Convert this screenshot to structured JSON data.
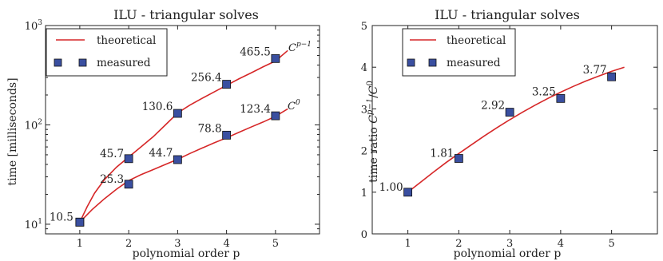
{
  "chart_data": [
    {
      "type": "line",
      "title": "ILU - triangular solves",
      "xlabel": "polynomial order p",
      "ylabel": "time [milliseconds]",
      "yscale": "log",
      "xlim": [
        0.3,
        5.9
      ],
      "ylim": [
        8,
        1000
      ],
      "xticks": [
        "1",
        "2",
        "3",
        "4",
        "5"
      ],
      "yticks": [
        "10¹",
        "10²",
        "10³"
      ],
      "colors": {
        "theoretical": "#d62728",
        "measured": "#3a4fa0"
      },
      "legend": {
        "position": "top-left",
        "entries": [
          "theoretical",
          "measured"
        ]
      },
      "series": [
        {
          "name": "Cᵖ⁻¹",
          "x": [
            1,
            2,
            3,
            4,
            5
          ],
          "values": [
            10.5,
            45.7,
            130.6,
            256.4,
            465.5
          ],
          "labels": [
            "10.5",
            "45.7",
            "130.6",
            "256.4",
            "465.5"
          ]
        },
        {
          "name": "C⁰",
          "x": [
            1,
            2,
            3,
            4,
            5
          ],
          "values": [
            10.5,
            25.3,
            44.7,
            78.8,
            123.4
          ],
          "labels": [
            "10.5",
            "25.3",
            "44.7",
            "78.8",
            "123.4"
          ]
        }
      ],
      "theoretical": [
        {
          "x": [
            1,
            1.15,
            1.3,
            1.5,
            1.75,
            2,
            2.25,
            2.5,
            2.75,
            3,
            3.25,
            3.5,
            3.75,
            4,
            4.25,
            4.5,
            4.75,
            5,
            5.25
          ],
          "values": [
            10.5,
            15,
            20.5,
            28,
            37.5,
            47.5,
            60,
            76,
            100,
            132,
            158,
            185,
            215,
            250,
            290,
            333,
            385,
            440,
            560
          ]
        },
        {
          "x": [
            1,
            1.25,
            1.5,
            1.75,
            2,
            2.25,
            2.5,
            2.75,
            3,
            3.25,
            3.5,
            3.75,
            4,
            4.25,
            4.5,
            4.75,
            5,
            5.25
          ],
          "values": [
            10.5,
            14,
            18,
            22.5,
            27.5,
            31.5,
            35.5,
            40,
            45,
            51.5,
            58.5,
            66,
            74,
            84,
            95,
            107,
            122,
            145
          ]
        }
      ]
    },
    {
      "type": "line",
      "title": "ILU - triangular solves",
      "xlabel": "polynomial order p",
      "ylabel": "time ratio Cᵖ⁻¹/C⁰",
      "xlim": [
        0.3,
        5.9
      ],
      "ylim": [
        0,
        5
      ],
      "xticks": [
        "1",
        "2",
        "3",
        "4",
        "5"
      ],
      "yticks": [
        "0",
        "1",
        "2",
        "3",
        "4",
        "5"
      ],
      "colors": {
        "theoretical": "#d62728",
        "measured": "#3a4fa0"
      },
      "legend": {
        "position": "top-left",
        "entries": [
          "theoretical",
          "measured"
        ]
      },
      "series": [
        {
          "name": "measured",
          "x": [
            1,
            2,
            3,
            4,
            5
          ],
          "values": [
            1.0,
            1.81,
            2.92,
            3.25,
            3.77
          ],
          "labels": [
            "1.00",
            "1.81",
            "2.92",
            "3.25",
            "3.77"
          ]
        }
      ],
      "theoretical": [
        {
          "x": [
            1,
            1.25,
            1.5,
            1.75,
            2,
            2.25,
            2.5,
            2.75,
            3,
            3.25,
            3.5,
            3.75,
            4,
            4.25,
            4.5,
            4.75,
            5,
            5.25
          ],
          "values": [
            1.0,
            1.24,
            1.48,
            1.71,
            1.93,
            2.14,
            2.35,
            2.55,
            2.74,
            2.92,
            3.09,
            3.25,
            3.4,
            3.54,
            3.67,
            3.79,
            3.9,
            4.0
          ]
        }
      ]
    }
  ]
}
